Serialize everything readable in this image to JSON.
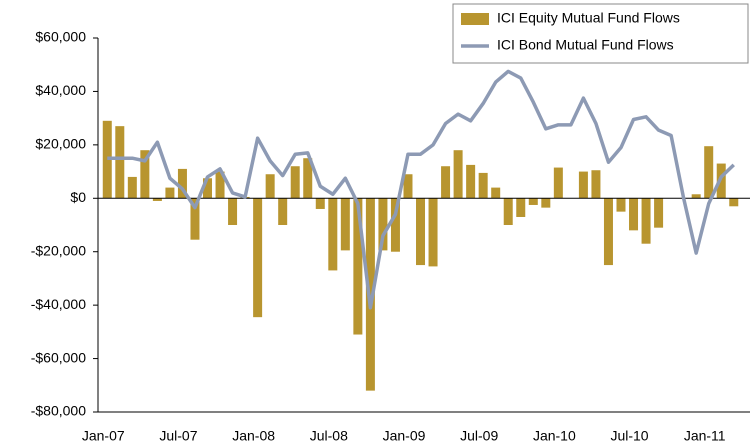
{
  "chart_data": {
    "type": "bar_line",
    "categories": [
      "Jan-07",
      null,
      null,
      null,
      null,
      null,
      "Jul-07",
      null,
      null,
      null,
      null,
      null,
      "Jan-08",
      null,
      null,
      null,
      null,
      null,
      "Jul-08",
      null,
      null,
      null,
      null,
      null,
      "Jan-09",
      null,
      null,
      null,
      null,
      null,
      "Jul-09",
      null,
      null,
      null,
      null,
      null,
      "Jan-10",
      null,
      null,
      null,
      null,
      null,
      "Jul-10",
      null,
      null,
      null,
      null,
      null,
      "Jan-11",
      null,
      null
    ],
    "series": [
      {
        "name": "ICI Equity Mutual Fund Flows",
        "type": "bar",
        "color": "#b8952f",
        "values": [
          29000,
          27000,
          8000,
          18000,
          -1000,
          4000,
          11000,
          -15500,
          7500,
          10000,
          -10000,
          500,
          -44500,
          9000,
          -10000,
          12000,
          15000,
          -4000,
          -27000,
          -19500,
          -51000,
          -72000,
          -19500,
          -20000,
          9000,
          -25000,
          -25500,
          12000,
          18000,
          12500,
          9500,
          4000,
          -10000,
          -7000,
          -2500,
          -3500,
          11500,
          0,
          10000,
          10500,
          -25000,
          -5000,
          -12000,
          -17000,
          -11000,
          0,
          0,
          1500,
          19500,
          13000,
          -3000
        ]
      },
      {
        "name": "ICI Bond Mutual Fund Flows",
        "type": "line",
        "color": "#8d9ab4",
        "values": [
          15000,
          15000,
          15000,
          14000,
          21000,
          7500,
          3500,
          -3500,
          8000,
          11000,
          2000,
          500,
          22500,
          14000,
          8500,
          16500,
          17000,
          4500,
          1500,
          7500,
          -2000,
          -41000,
          -14000,
          -6000,
          16500,
          16500,
          20000,
          28000,
          31500,
          29000,
          35500,
          43500,
          47500,
          45000,
          36000,
          26000,
          27500,
          27500,
          37500,
          28000,
          13500,
          19000,
          29500,
          30500,
          25500,
          23500,
          0,
          -20500,
          -2000,
          8000,
          12500
        ]
      }
    ],
    "ylim": [
      -80000,
      60000
    ],
    "yticks": [
      {
        "value": -80000,
        "label": "-$80,000"
      },
      {
        "value": -60000,
        "label": "-$60,000"
      },
      {
        "value": -40000,
        "label": "-$40,000"
      },
      {
        "value": -20000,
        "label": "-$20,000"
      },
      {
        "value": 0,
        "label": "$0"
      },
      {
        "value": 20000,
        "label": "$20,000"
      },
      {
        "value": 40000,
        "label": "$40,000"
      },
      {
        "value": 60000,
        "label": "$60,000"
      }
    ],
    "grid": false,
    "legend": "top-right"
  }
}
